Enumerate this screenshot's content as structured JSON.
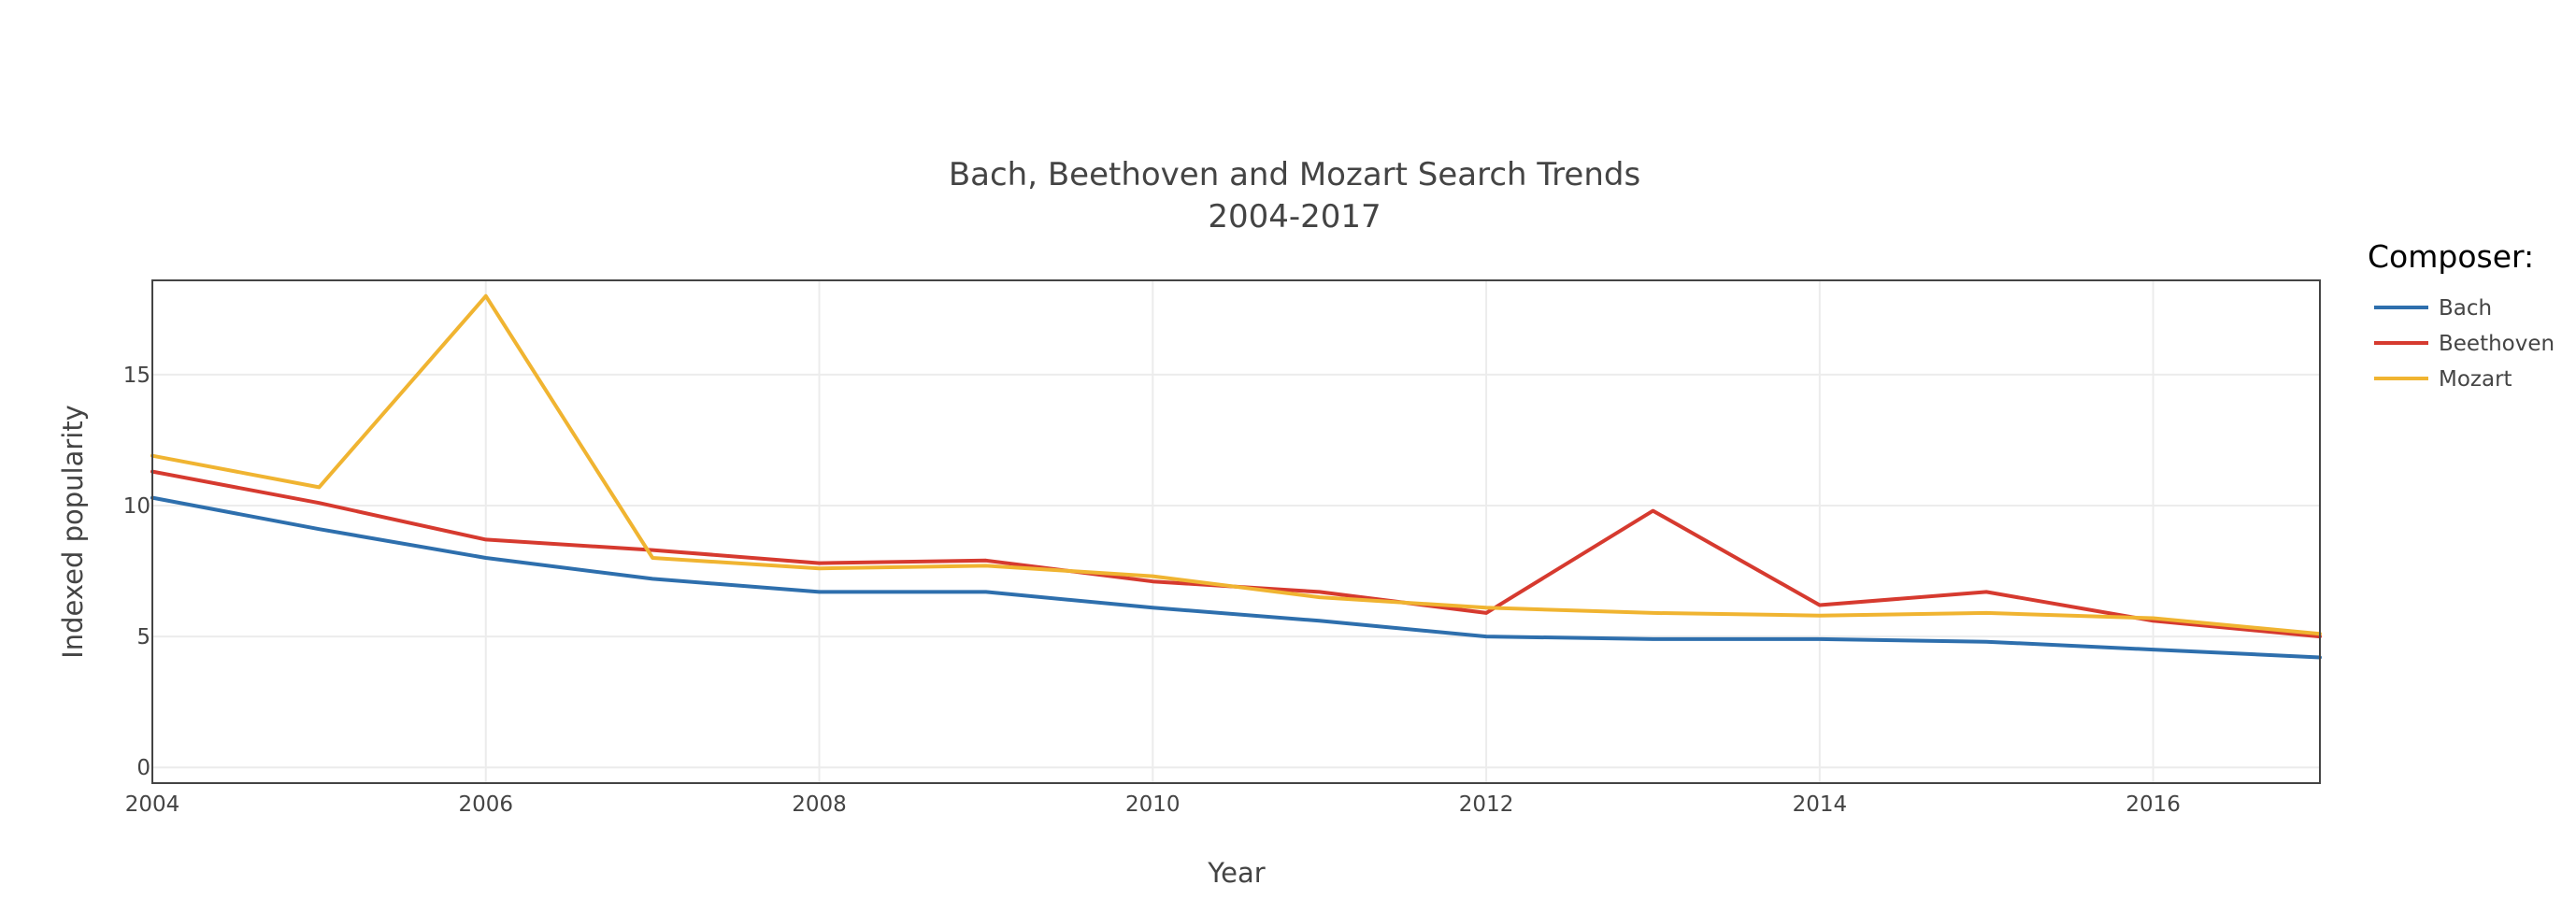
{
  "chart_data": {
    "type": "line",
    "title": "Bach, Beethoven and Mozart Search Trends",
    "subtitle": "2004-2017",
    "xlabel": "Year",
    "ylabel": "Indexed popularity",
    "xlim": [
      2004,
      2017
    ],
    "ylim": [
      -0.6,
      18.6
    ],
    "x_ticks": [
      2004,
      2006,
      2008,
      2010,
      2012,
      2014,
      2016
    ],
    "y_ticks": [
      0,
      5,
      10,
      15
    ],
    "grid": true,
    "legend": {
      "title": "Composer:",
      "placement": "right"
    },
    "x": [
      2004,
      2005,
      2006,
      2007,
      2008,
      2009,
      2010,
      2011,
      2012,
      2013,
      2014,
      2015,
      2016,
      2017
    ],
    "series": [
      {
        "name": "Bach",
        "color": "#2e6fad",
        "values": [
          10.3,
          9.1,
          8.0,
          7.2,
          6.7,
          6.7,
          6.1,
          5.6,
          5.0,
          4.9,
          4.9,
          4.8,
          4.5,
          4.2
        ]
      },
      {
        "name": "Beethoven",
        "color": "#d63a2f",
        "values": [
          11.3,
          10.1,
          8.7,
          8.3,
          7.8,
          7.9,
          7.1,
          6.7,
          5.9,
          9.8,
          6.2,
          6.7,
          5.6,
          5.0
        ]
      },
      {
        "name": "Mozart",
        "color": "#f0b431",
        "values": [
          11.9,
          10.7,
          18.0,
          8.0,
          7.6,
          7.7,
          7.3,
          6.5,
          6.1,
          5.9,
          5.8,
          5.9,
          5.7,
          5.1
        ]
      }
    ]
  }
}
